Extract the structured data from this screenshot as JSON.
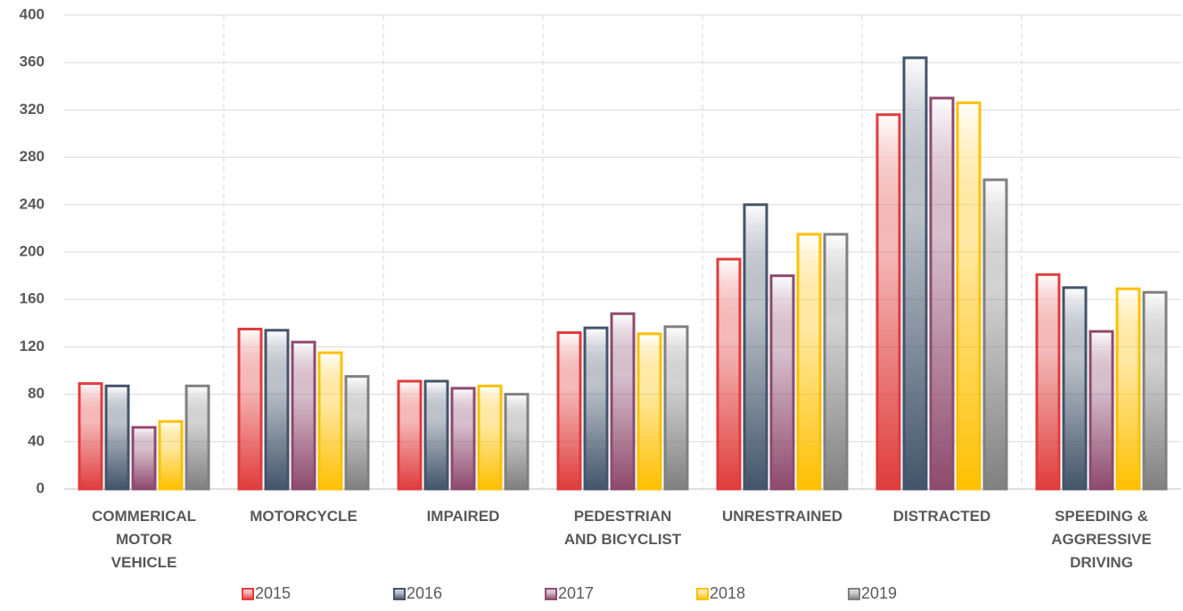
{
  "chart_data": {
    "type": "bar",
    "categories": [
      "COMMERICAL\nMOTOR\nVEHICLE",
      "MOTORCYCLE",
      "IMPAIRED",
      "PEDESTRIAN\nAND BICYCLIST",
      "UNRESTRAINED",
      "DISTRACTED",
      "SPEEDING &\nAGGRESSIVE\nDRIVING"
    ],
    "series": [
      {
        "name": "2015",
        "color": "#e03c3c",
        "values": [
          89,
          135,
          91,
          132,
          194,
          316,
          181
        ]
      },
      {
        "name": "2016",
        "color": "#44546a",
        "values": [
          87,
          134,
          91,
          136,
          240,
          364,
          170
        ]
      },
      {
        "name": "2017",
        "color": "#8e4a6e",
        "values": [
          52,
          124,
          85,
          148,
          180,
          330,
          133
        ]
      },
      {
        "name": "2018",
        "color": "#ffc000",
        "values": [
          57,
          115,
          87,
          131,
          215,
          326,
          169
        ]
      },
      {
        "name": "2019",
        "color": "#808080",
        "values": [
          87,
          95,
          80,
          137,
          215,
          261,
          166
        ]
      }
    ],
    "ylim": [
      0,
      400
    ],
    "yticks": [
      0,
      40,
      80,
      120,
      160,
      200,
      240,
      280,
      320,
      360,
      400
    ],
    "grid": true,
    "legend": "bottom"
  }
}
